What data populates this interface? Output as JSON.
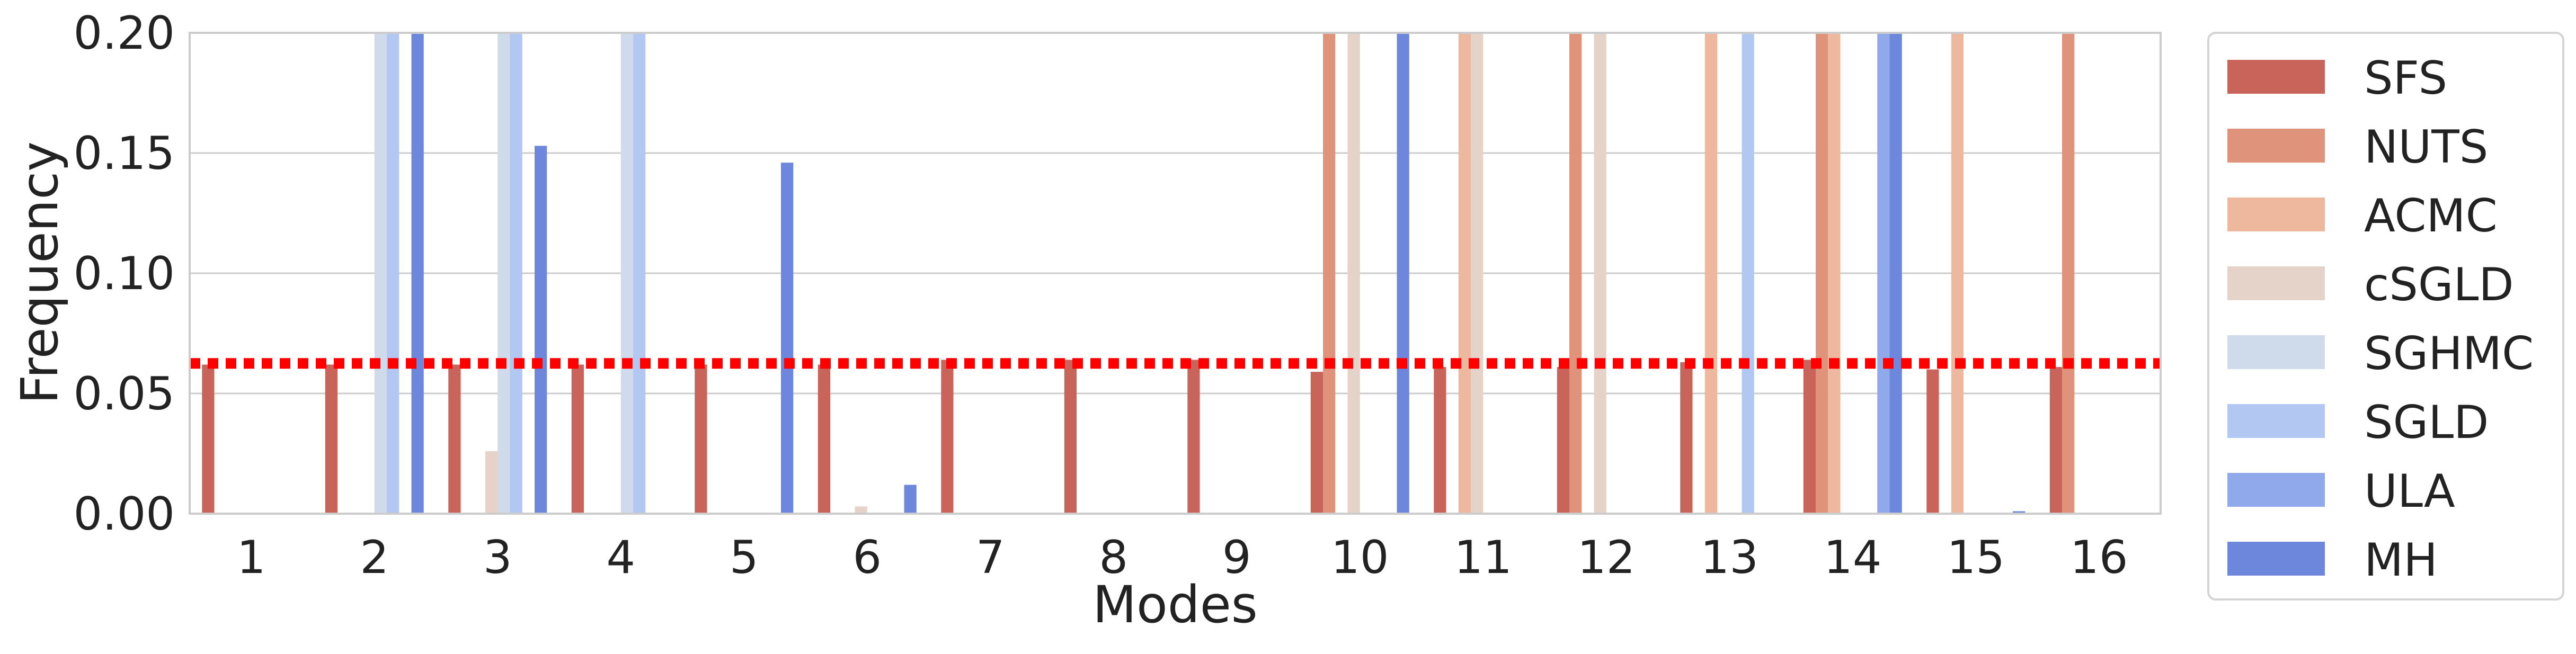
{
  "chart_data": {
    "type": "bar",
    "xlabel": "Modes",
    "ylabel": "Frequency",
    "categories": [
      "1",
      "2",
      "3",
      "4",
      "5",
      "6",
      "7",
      "8",
      "9",
      "10",
      "11",
      "12",
      "13",
      "14",
      "15",
      "16"
    ],
    "ylim": [
      0,
      0.2
    ],
    "yticks": [
      "0.00",
      "0.05",
      "0.10",
      "0.15",
      "0.20"
    ],
    "grid": "horizontal",
    "legend_position": "outside-right",
    "reference_line": {
      "value": 0.0625,
      "color": "#ff0000",
      "style": "dotted"
    },
    "series": [
      {
        "name": "SFS",
        "color": "#c8645a",
        "values": [
          0.062,
          0.062,
          0.062,
          0.062,
          0.062,
          0.062,
          0.064,
          0.064,
          0.064,
          0.059,
          0.061,
          0.061,
          0.063,
          0.064,
          0.06,
          0.061
        ]
      },
      {
        "name": "NUTS",
        "color": "#e0937b",
        "values": [
          0,
          0,
          0,
          0,
          0,
          0,
          0,
          0,
          0,
          0.2,
          0,
          0.2,
          0,
          0.2,
          0,
          0.2
        ]
      },
      {
        "name": "ACMC",
        "color": "#edb89e",
        "values": [
          0,
          0,
          0,
          0,
          0,
          0,
          0,
          0,
          0,
          0,
          0.2,
          0,
          0.2,
          0.2,
          0.2,
          0
        ]
      },
      {
        "name": "cSGLD",
        "color": "#e5d3c9",
        "values": [
          0,
          0,
          0.026,
          0,
          0,
          0.003,
          0,
          0,
          0,
          0.2,
          0.2,
          0.2,
          0,
          0,
          0,
          0
        ]
      },
      {
        "name": "SGHMC",
        "color": "#cfdaea",
        "values": [
          0,
          0.2,
          0.2,
          0.2,
          0,
          0,
          0,
          0,
          0,
          0,
          0,
          0,
          0,
          0,
          0,
          0
        ]
      },
      {
        "name": "SGLD",
        "color": "#b2c8f2",
        "values": [
          0,
          0.2,
          0.2,
          0.2,
          0,
          0,
          0,
          0,
          0,
          0,
          0,
          0,
          0.2,
          0,
          0,
          0
        ]
      },
      {
        "name": "ULA",
        "color": "#8fa9ea",
        "values": [
          0,
          0,
          0,
          0,
          0,
          0,
          0,
          0,
          0,
          0,
          0,
          0,
          0,
          0.2,
          0,
          0
        ]
      },
      {
        "name": "MH",
        "color": "#6c87dc",
        "values": [
          0,
          0.2,
          0.153,
          0,
          0.146,
          0.012,
          0,
          0,
          0,
          0.2,
          0,
          0,
          0,
          0.2,
          0.001,
          0
        ]
      }
    ]
  }
}
